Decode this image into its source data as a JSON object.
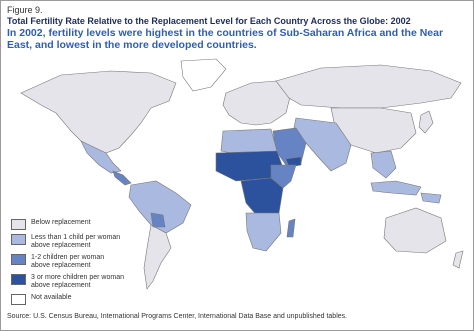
{
  "header": {
    "figure": "Figure 9.",
    "title": "Total Fertility Rate Relative to the Replacement Level for Each Country Across the Globe:  2002",
    "subtitle": "In 2002, fertility levels were highest in the countries of Sub-Saharan Africa and the Near East, and lowest in the more developed countries."
  },
  "legend": [
    {
      "lines": [
        "Below replacement"
      ],
      "color": "#e4e4ea"
    },
    {
      "lines": [
        "Less than 1 child per woman",
        "above replacement"
      ],
      "color": "#aab9df"
    },
    {
      "lines": [
        "1-2 children per woman",
        "above replacement"
      ],
      "color": "#6683c3"
    },
    {
      "lines": [
        "3 or more children per woman",
        "above replacement"
      ],
      "color": "#2c529e"
    },
    {
      "lines": [
        "Not available"
      ],
      "color": "#ffffff"
    }
  ],
  "source": "Source:  U.S. Census Bureau, International Programs Center, International Data Base and unpublished tables."
}
